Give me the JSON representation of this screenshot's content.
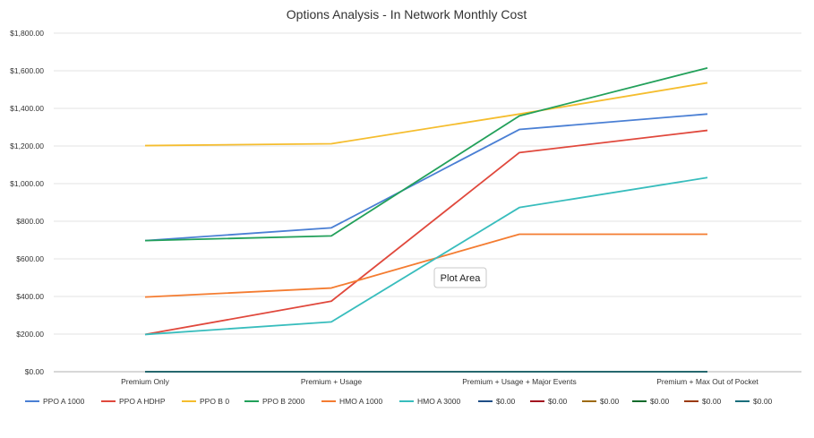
{
  "chart_data": {
    "type": "line",
    "title": "Options Analysis - In Network Monthly Cost",
    "categories": [
      "Premium Only",
      "Premium + Usage",
      "Premium + Usage + Major Events",
      "Premium + Max Out of Pocket"
    ],
    "yticks": [
      "$0.00",
      "$200.00",
      "$400.00",
      "$600.00",
      "$800.00",
      "$1,000.00",
      "$1,200.00",
      "$1,400.00",
      "$1,600.00",
      "$1,800.00"
    ],
    "ylim": [
      0,
      1800
    ],
    "grid": true,
    "legend_position": "bottom",
    "series": [
      {
        "name": "PPO A 1000",
        "color": "#4a7fd4",
        "values": [
          697,
          765,
          1288,
          1370
        ]
      },
      {
        "name": "PPO A HDHP",
        "color": "#e0483c",
        "values": [
          198,
          375,
          1165,
          1283
        ]
      },
      {
        "name": "PPO B 0",
        "color": "#f5bd2e",
        "values": [
          1202,
          1212,
          1370,
          1536
        ]
      },
      {
        "name": "PPO B 2000",
        "color": "#22a05a",
        "values": [
          697,
          722,
          1360,
          1615
        ]
      },
      {
        "name": "HMO A 1000",
        "color": "#f47c31",
        "values": [
          397,
          445,
          731,
          731
        ]
      },
      {
        "name": "HMO A 3000",
        "color": "#38bdbd",
        "values": [
          198,
          265,
          873,
          1032
        ]
      },
      {
        "name": "$0.00",
        "color": "#1f4e86",
        "values": [
          0,
          0,
          0,
          0
        ]
      },
      {
        "name": "$0.00",
        "color": "#a3131f",
        "values": [
          0,
          0,
          0,
          0
        ]
      },
      {
        "name": "$0.00",
        "color": "#9e6a10",
        "values": [
          0,
          0,
          0,
          0
        ]
      },
      {
        "name": "$0.00",
        "color": "#106a2b",
        "values": [
          0,
          0,
          0,
          0
        ]
      },
      {
        "name": "$0.00",
        "color": "#9b3a0c",
        "values": [
          0,
          0,
          0,
          0
        ]
      },
      {
        "name": "$0.00",
        "color": "#1a6e7c",
        "values": [
          0,
          0,
          0,
          0
        ]
      }
    ]
  },
  "tooltip": {
    "label": "Plot Area"
  }
}
